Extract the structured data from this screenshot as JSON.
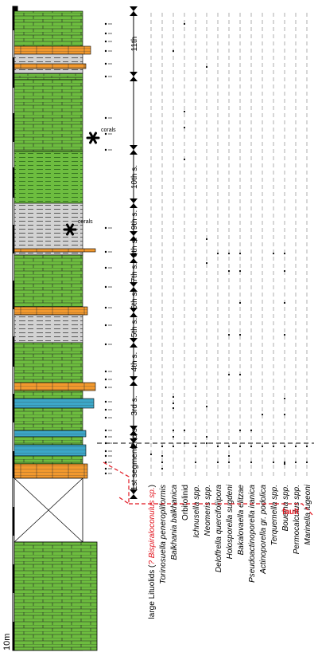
{
  "scale_label": "10m",
  "segments": [
    {
      "label": "1st segment"
    },
    {
      "label": "2nd s."
    },
    {
      "label": "3rd s."
    },
    {
      "label": "4th s."
    },
    {
      "label": "5th s."
    },
    {
      "label": "6th s."
    },
    {
      "label": "7th s."
    },
    {
      "label": "8th s."
    },
    {
      "label": "9th s."
    },
    {
      "label": "10th s."
    },
    {
      "label": "11th"
    }
  ],
  "coral_labels": [
    "corals",
    "corals"
  ],
  "fault_label": "fault",
  "taxa": [
    {
      "name": "large Lituolids (",
      "qualifier": "? Bispiraloconulus sp.",
      "close": ")",
      "italic": false,
      "highlight": true
    },
    {
      "name": "Torinosuella peneropliformis",
      "italic": true
    },
    {
      "name": "Balkhania balkhanica",
      "italic": true
    },
    {
      "name": "Orbitolinid",
      "italic": false
    },
    {
      "name": "Ichnusella spp.",
      "italic": true
    },
    {
      "name": "Neomeris spp.",
      "italic": true
    },
    {
      "name": "Deloffrella quercifoliipora",
      "italic": true
    },
    {
      "name": "Holosporella sugdeni",
      "italic": true
    },
    {
      "name": "Bakalovaella elitzae",
      "italic": true
    },
    {
      "name": "Pseudoactinoporella iranica",
      "italic": true
    },
    {
      "name": "Actinoporella gr. podolica",
      "italic": true
    },
    {
      "name": "Terquemella spp.",
      "italic": true
    },
    {
      "name": "Boueina spp.",
      "italic": true
    },
    {
      "name": "Permocalculus spp.",
      "italic": true
    },
    {
      "name": "Marinella lugeoni",
      "italic": true
    }
  ],
  "colors": {
    "limestone": "#6dbd3f",
    "marl": "#d2d2d2",
    "sand": "#f2992e",
    "blue": "#3ca7c8",
    "fault": "#e1141e"
  }
}
